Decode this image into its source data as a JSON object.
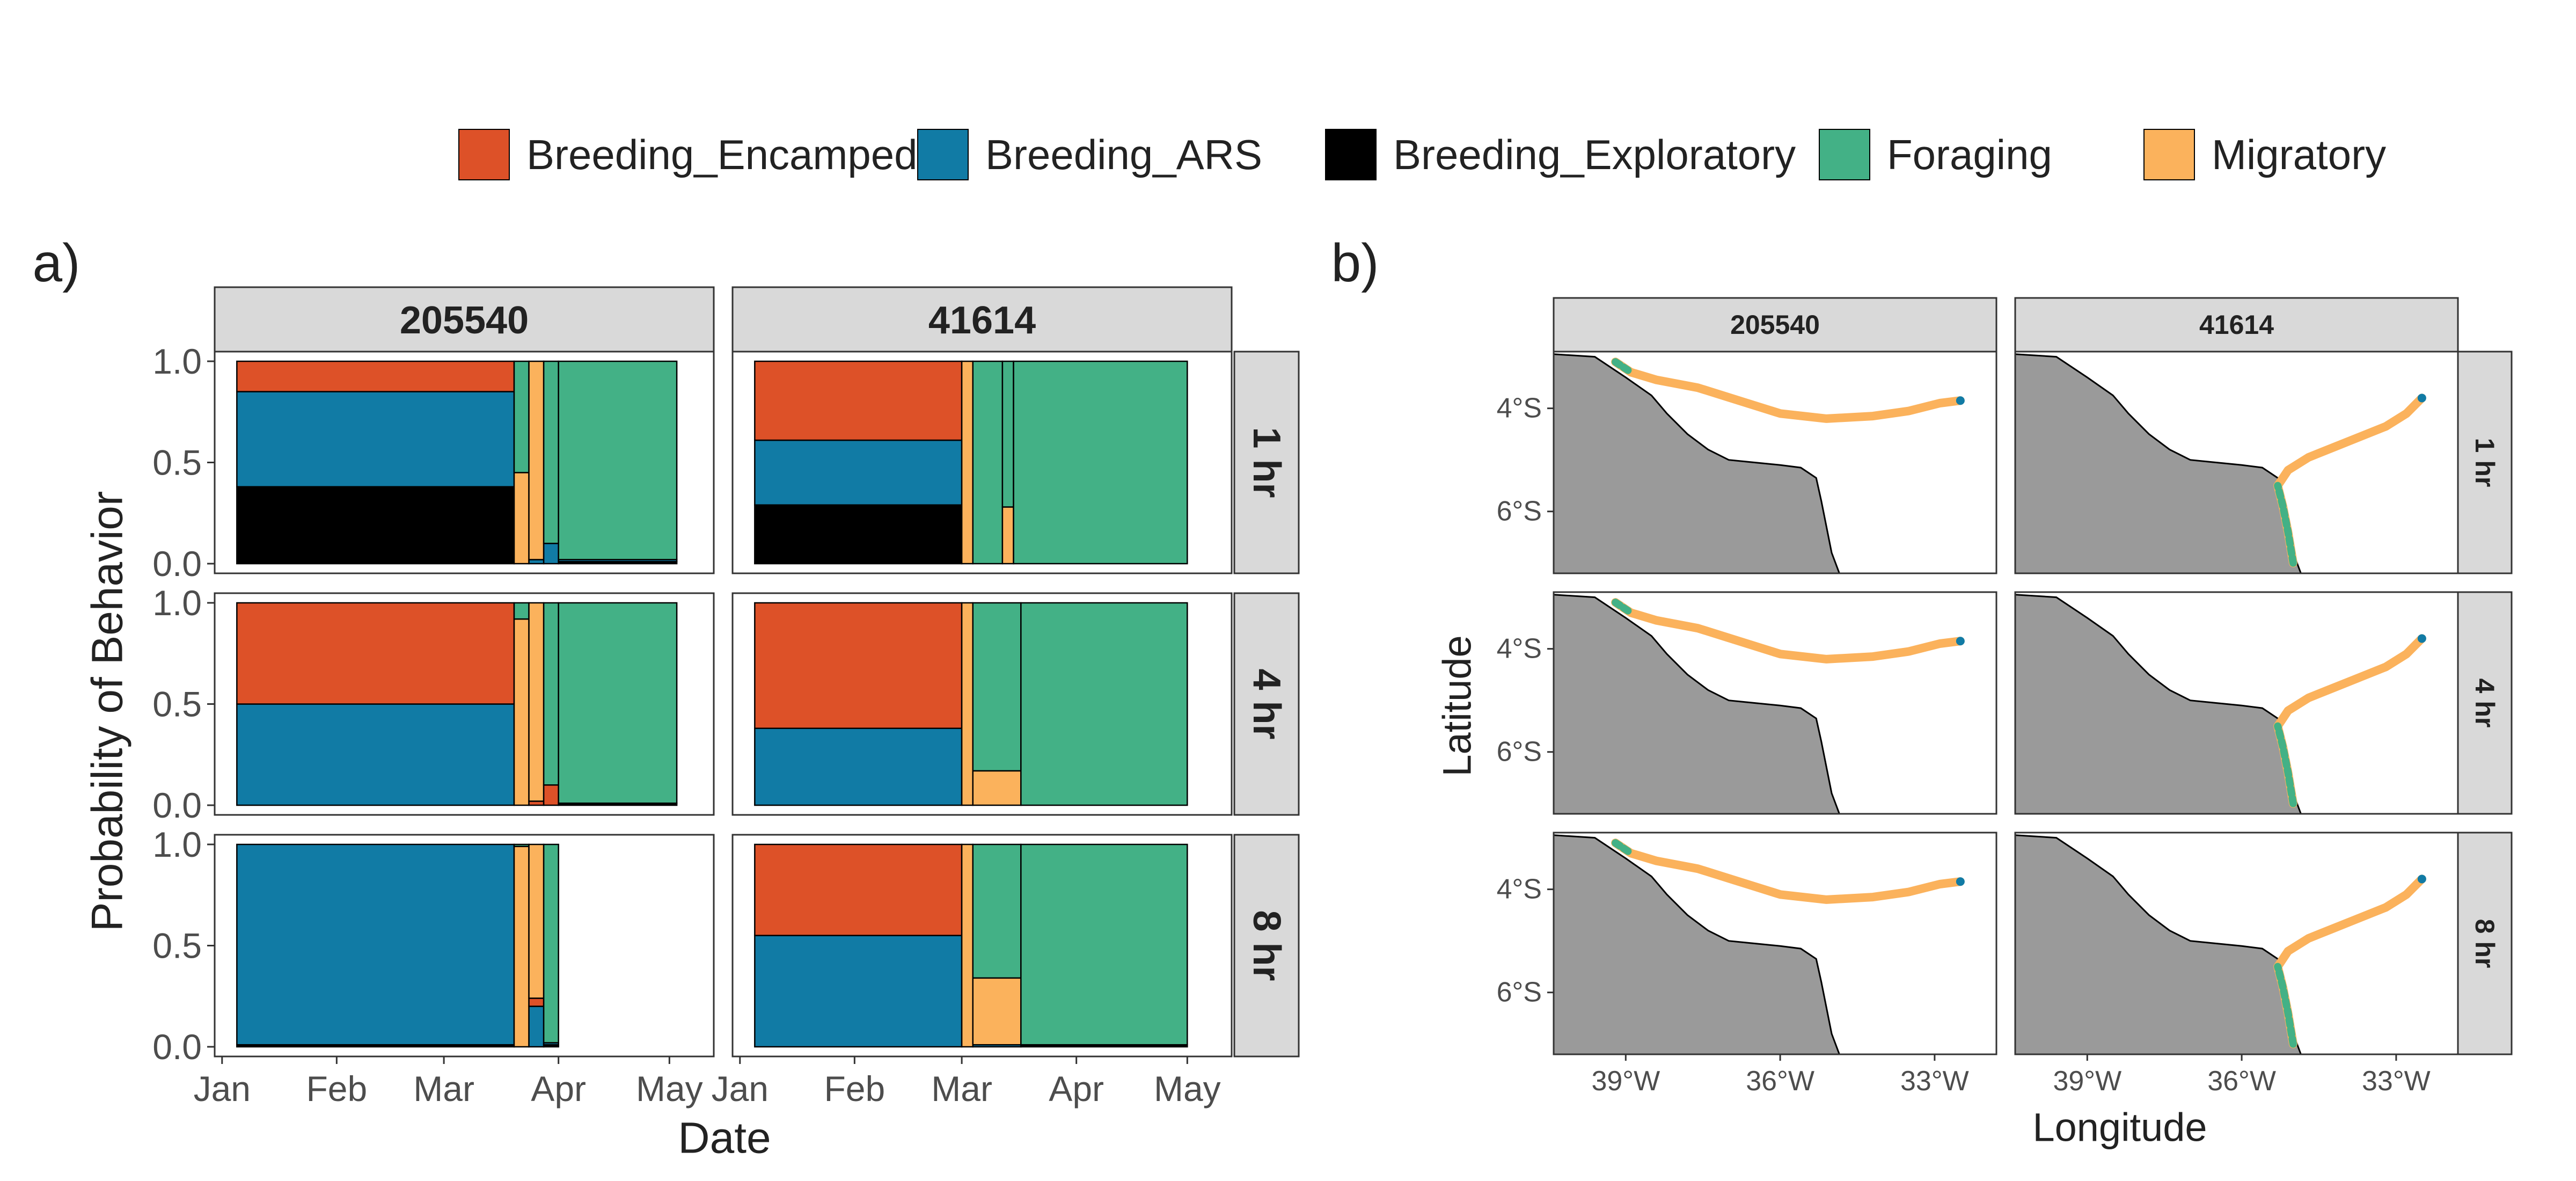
{
  "legend": [
    {
      "name": "Breeding_Encamped",
      "color": "#DD5128"
    },
    {
      "name": "Breeding_ARS",
      "color": "#117BA5"
    },
    {
      "name": "Breeding_Exploratory",
      "color": "#000000"
    },
    {
      "name": "Foraging",
      "color": "#43B186"
    },
    {
      "name": "Migratory",
      "color": "#FBB25C"
    }
  ],
  "panel_a": {
    "label": "a)",
    "ylabel": "Probability of Behavior",
    "xlabel": "Date",
    "columns": [
      "205540",
      "41614"
    ],
    "rows": [
      "1 hr",
      "4 hr",
      "8 hr"
    ],
    "yticks": [
      "0.0",
      "0.5",
      "1.0"
    ],
    "xticks": [
      {
        "label": "Jan",
        "date": "2020-01-01"
      },
      {
        "label": "Feb",
        "date": "2020-02-01"
      },
      {
        "label": "Mar",
        "date": "2020-03-01"
      },
      {
        "label": "Apr",
        "date": "2020-04-01"
      },
      {
        "label": "May",
        "date": "2020-05-01"
      }
    ]
  },
  "panel_b": {
    "label": "b)",
    "ylabel": "Latitude",
    "xlabel": "Longitude",
    "columns": [
      "205540",
      "41614"
    ],
    "rows": [
      "1 hr",
      "4 hr",
      "8 hr"
    ],
    "yticks": [
      {
        "label": "4°S",
        "lat": -4
      },
      {
        "label": "6°S",
        "lat": -6
      }
    ],
    "xticks": [
      {
        "label": "39°W",
        "lon": -39
      },
      {
        "label": "36°W",
        "lon": -36
      },
      {
        "label": "33°W",
        "lon": -33
      }
    ],
    "xlim": [
      -40.4,
      -31.8
    ],
    "ylim": [
      -7.2,
      -2.9
    ],
    "land_color": "#9A9A9A",
    "coastline": [
      [
        -40.4,
        -2.95
      ],
      [
        -39.6,
        -3.0
      ],
      [
        -39.0,
        -3.4
      ],
      [
        -38.5,
        -3.75
      ],
      [
        -38.2,
        -4.1
      ],
      [
        -37.8,
        -4.5
      ],
      [
        -37.4,
        -4.8
      ],
      [
        -37.0,
        -5.0
      ],
      [
        -36.5,
        -5.05
      ],
      [
        -36.0,
        -5.1
      ],
      [
        -35.6,
        -5.15
      ],
      [
        -35.3,
        -5.35
      ],
      [
        -35.2,
        -5.8
      ],
      [
        -35.1,
        -6.3
      ],
      [
        -35.0,
        -6.8
      ],
      [
        -34.85,
        -7.2
      ]
    ],
    "tracks": {
      "205540": [
        [
          -39.2,
          -3.1
        ],
        [
          -38.9,
          -3.3
        ],
        [
          -38.4,
          -3.45
        ],
        [
          -37.6,
          -3.6
        ],
        [
          -36.8,
          -3.85
        ],
        [
          -36.0,
          -4.1
        ],
        [
          -35.1,
          -4.2
        ],
        [
          -34.2,
          -4.15
        ],
        [
          -33.5,
          -4.05
        ],
        [
          -32.9,
          -3.9
        ],
        [
          -32.5,
          -3.85
        ]
      ],
      "41614": [
        [
          -35.0,
          -7.0
        ],
        [
          -35.1,
          -6.4
        ],
        [
          -35.2,
          -5.9
        ],
        [
          -35.3,
          -5.5
        ],
        [
          -35.1,
          -5.2
        ],
        [
          -34.7,
          -4.95
        ],
        [
          -34.2,
          -4.75
        ],
        [
          -33.7,
          -4.55
        ],
        [
          -33.2,
          -4.35
        ],
        [
          -32.8,
          -4.1
        ],
        [
          -32.5,
          -3.8
        ]
      ]
    }
  },
  "chart_data": [
    {
      "type": "area",
      "stacked": true,
      "title": "",
      "xlabel": "Date",
      "ylabel": "Probability of Behavior",
      "ylim": [
        0,
        1
      ],
      "xlim": [
        "2020-01-01",
        "2020-05-01"
      ],
      "legend_position": "top",
      "grid": false,
      "series_order": [
        "Breeding_Exploratory",
        "Breeding_ARS",
        "Breeding_Encamped",
        "Migratory",
        "Foraging"
      ],
      "panels": [
        {
          "id": "205540",
          "resolution": "1 hr",
          "segments": [
            {
              "start": "2020-01-05",
              "end": "2020-03-20",
              "Breeding_Exploratory": 0.38,
              "Breeding_ARS": 0.47,
              "Breeding_Encamped": 0.15,
              "Migratory": 0,
              "Foraging": 0
            },
            {
              "start": "2020-03-20",
              "end": "2020-03-24",
              "Breeding_Exploratory": 0,
              "Breeding_ARS": 0,
              "Breeding_Encamped": 0,
              "Migratory": 0.45,
              "Foraging": 0.55
            },
            {
              "start": "2020-03-24",
              "end": "2020-03-28",
              "Breeding_Exploratory": 0,
              "Breeding_ARS": 0.02,
              "Breeding_Encamped": 0,
              "Migratory": 0.98,
              "Foraging": 0
            },
            {
              "start": "2020-03-28",
              "end": "2020-04-01",
              "Breeding_Exploratory": 0,
              "Breeding_ARS": 0.1,
              "Breeding_Encamped": 0,
              "Migratory": 0,
              "Foraging": 0.9
            },
            {
              "start": "2020-04-01",
              "end": "2020-05-03",
              "Breeding_Exploratory": 0.01,
              "Breeding_ARS": 0.01,
              "Breeding_Encamped": 0,
              "Migratory": 0,
              "Foraging": 0.98
            }
          ]
        },
        {
          "id": "41614",
          "resolution": "1 hr",
          "segments": [
            {
              "start": "2020-01-05",
              "end": "2020-03-01",
              "Breeding_Exploratory": 0.29,
              "Breeding_ARS": 0.32,
              "Breeding_Encamped": 0.39,
              "Migratory": 0,
              "Foraging": 0
            },
            {
              "start": "2020-03-01",
              "end": "2020-03-04",
              "Breeding_Exploratory": 0,
              "Breeding_ARS": 0,
              "Breeding_Encamped": 0,
              "Migratory": 1.0,
              "Foraging": 0
            },
            {
              "start": "2020-03-04",
              "end": "2020-03-12",
              "Breeding_Exploratory": 0,
              "Breeding_ARS": 0,
              "Breeding_Encamped": 0,
              "Migratory": 0,
              "Foraging": 1.0
            },
            {
              "start": "2020-03-12",
              "end": "2020-03-15",
              "Breeding_Exploratory": 0,
              "Breeding_ARS": 0,
              "Breeding_Encamped": 0,
              "Migratory": 0.28,
              "Foraging": 0.72
            },
            {
              "start": "2020-03-15",
              "end": "2020-05-01",
              "Breeding_Exploratory": 0,
              "Breeding_ARS": 0,
              "Breeding_Encamped": 0,
              "Migratory": 0,
              "Foraging": 1.0
            }
          ]
        },
        {
          "id": "205540",
          "resolution": "4 hr",
          "segments": [
            {
              "start": "2020-01-05",
              "end": "2020-03-20",
              "Breeding_Exploratory": 0,
              "Breeding_ARS": 0.5,
              "Breeding_Encamped": 0.5,
              "Migratory": 0,
              "Foraging": 0
            },
            {
              "start": "2020-03-20",
              "end": "2020-03-24",
              "Breeding_Exploratory": 0,
              "Breeding_ARS": 0,
              "Breeding_Encamped": 0,
              "Migratory": 0.92,
              "Foraging": 0.08
            },
            {
              "start": "2020-03-24",
              "end": "2020-03-28",
              "Breeding_Exploratory": 0,
              "Breeding_ARS": 0,
              "Breeding_Encamped": 0.02,
              "Migratory": 0.98,
              "Foraging": 0
            },
            {
              "start": "2020-03-28",
              "end": "2020-04-01",
              "Breeding_Exploratory": 0,
              "Breeding_ARS": 0,
              "Breeding_Encamped": 0.1,
              "Migratory": 0,
              "Foraging": 0.9
            },
            {
              "start": "2020-04-01",
              "end": "2020-05-03",
              "Breeding_Exploratory": 0.01,
              "Breeding_ARS": 0,
              "Breeding_Encamped": 0,
              "Migratory": 0,
              "Foraging": 0.99
            }
          ]
        },
        {
          "id": "41614",
          "resolution": "4 hr",
          "segments": [
            {
              "start": "2020-01-05",
              "end": "2020-03-01",
              "Breeding_Exploratory": 0,
              "Breeding_ARS": 0.38,
              "Breeding_Encamped": 0.62,
              "Migratory": 0,
              "Foraging": 0
            },
            {
              "start": "2020-03-01",
              "end": "2020-03-04",
              "Breeding_Exploratory": 0,
              "Breeding_ARS": 0,
              "Breeding_Encamped": 0,
              "Migratory": 1.0,
              "Foraging": 0
            },
            {
              "start": "2020-03-04",
              "end": "2020-03-17",
              "Breeding_Exploratory": 0,
              "Breeding_ARS": 0,
              "Breeding_Encamped": 0,
              "Migratory": 0.17,
              "Foraging": 0.83
            },
            {
              "start": "2020-03-17",
              "end": "2020-05-01",
              "Breeding_Exploratory": 0,
              "Breeding_ARS": 0,
              "Breeding_Encamped": 0,
              "Migratory": 0,
              "Foraging": 1.0
            }
          ]
        },
        {
          "id": "205540",
          "resolution": "8 hr",
          "segments": [
            {
              "start": "2020-01-05",
              "end": "2020-03-20",
              "Breeding_Exploratory": 0.01,
              "Breeding_ARS": 0.99,
              "Breeding_Encamped": 0,
              "Migratory": 0,
              "Foraging": 0
            },
            {
              "start": "2020-03-20",
              "end": "2020-03-24",
              "Breeding_Exploratory": 0,
              "Breeding_ARS": 0,
              "Breeding_Encamped": 0,
              "Migratory": 0.99,
              "Foraging": 0.01
            },
            {
              "start": "2020-03-24",
              "end": "2020-03-28",
              "Breeding_Exploratory": 0,
              "Breeding_ARS": 0.2,
              "Breeding_Encamped": 0.04,
              "Migratory": 0.76,
              "Foraging": 0
            },
            {
              "start": "2020-03-28",
              "end": "2020-04-01",
              "Breeding_Exploratory": 0.01,
              "Breeding_ARS": 0.01,
              "Breeding_Encamped": 0,
              "Migratory": 0,
              "Foraging": 0.98
            }
          ]
        },
        {
          "id": "41614",
          "resolution": "8 hr",
          "segments": [
            {
              "start": "2020-01-05",
              "end": "2020-03-01",
              "Breeding_Exploratory": 0,
              "Breeding_ARS": 0.55,
              "Breeding_Encamped": 0.45,
              "Migratory": 0,
              "Foraging": 0
            },
            {
              "start": "2020-03-01",
              "end": "2020-03-04",
              "Breeding_Exploratory": 0,
              "Breeding_ARS": 0,
              "Breeding_Encamped": 0,
              "Migratory": 1.0,
              "Foraging": 0
            },
            {
              "start": "2020-03-04",
              "end": "2020-03-17",
              "Breeding_Exploratory": 0,
              "Breeding_ARS": 0.01,
              "Breeding_Encamped": 0,
              "Migratory": 0.33,
              "Foraging": 0.66
            },
            {
              "start": "2020-03-17",
              "end": "2020-05-01",
              "Breeding_Exploratory": 0.01,
              "Breeding_ARS": 0,
              "Breeding_Encamped": 0,
              "Migratory": 0,
              "Foraging": 0.99
            }
          ]
        }
      ]
    }
  ]
}
